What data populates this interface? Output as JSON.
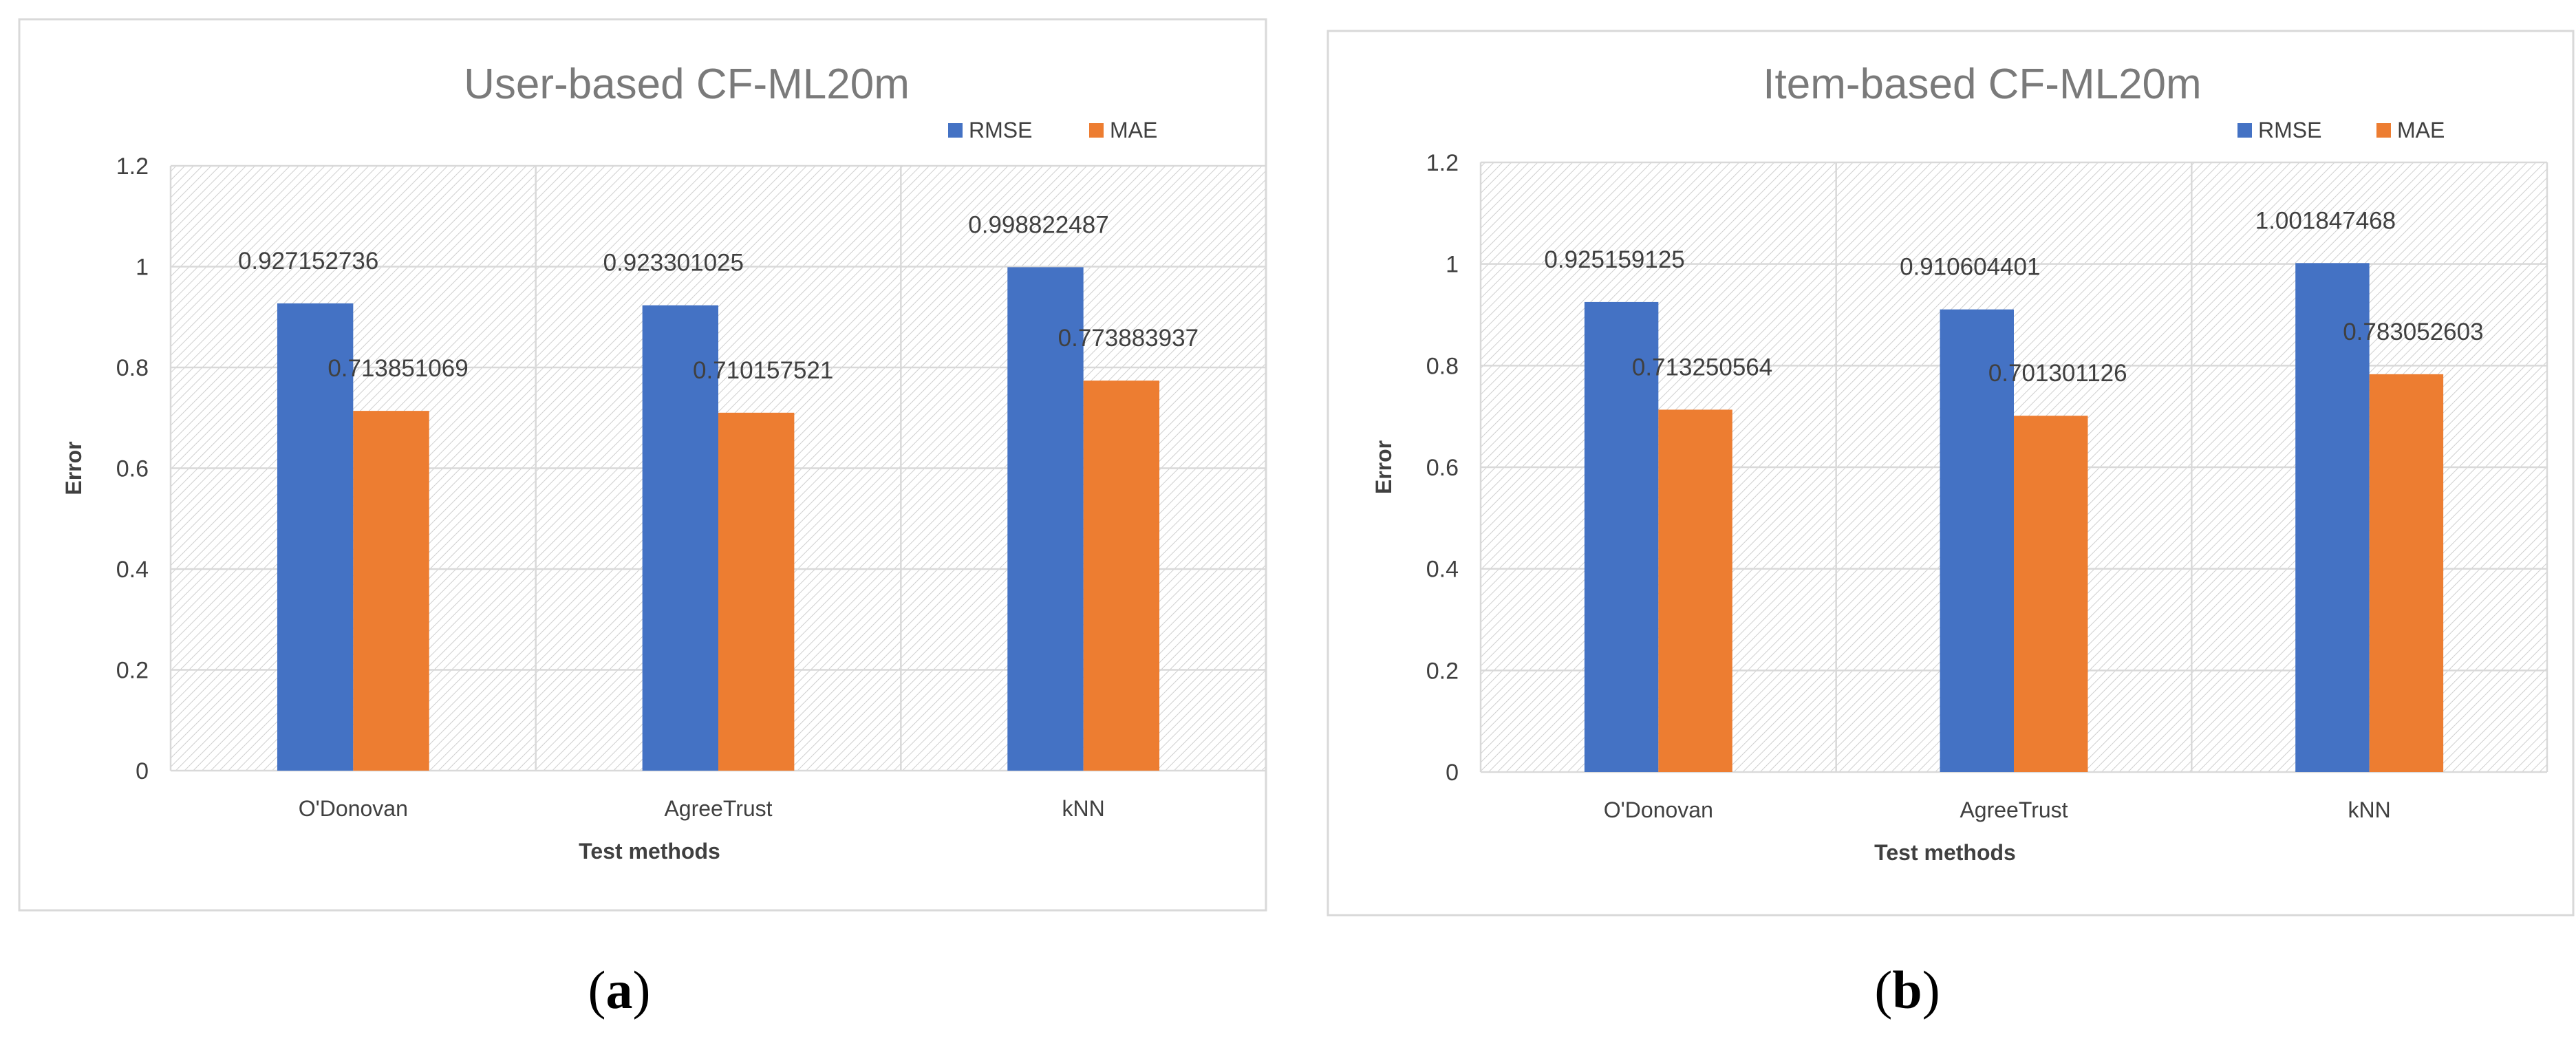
{
  "colors": {
    "rmse": "#4472c4",
    "mae": "#ed7d31",
    "grid": "#d9d9d9",
    "frame": "#d9d9d9",
    "hatch": "#cfcfcf"
  },
  "chart_data": [
    {
      "type": "bar",
      "title": "User-based CF-ML20m",
      "xlabel": "Test methods",
      "ylabel": "Error",
      "ylim": [
        0,
        1.2
      ],
      "yticks": [
        "0",
        "0.2",
        "0.4",
        "0.6",
        "0.8",
        "1",
        "1.2"
      ],
      "categories": [
        "O'Donovan",
        "AgreeTrust",
        "kNN"
      ],
      "series": [
        {
          "name": "RMSE",
          "values": [
            0.927152736,
            0.923301025,
            0.998822487
          ],
          "labels": [
            "0.927152736",
            "0.923301025",
            "0.998822487"
          ]
        },
        {
          "name": "MAE",
          "values": [
            0.713851069,
            0.710157521,
            0.773883937
          ],
          "labels": [
            "0.713851069",
            "0.710157521",
            "0.773883937"
          ]
        }
      ],
      "legend": "top-right",
      "grid": true,
      "caption": {
        "open": "(",
        "letter": "a",
        "close": ")"
      }
    },
    {
      "type": "bar",
      "title": "Item-based CF-ML20m",
      "xlabel": "Test methods",
      "ylabel": "Error",
      "ylim": [
        0,
        1.2
      ],
      "yticks": [
        "0",
        "0.2",
        "0.4",
        "0.6",
        "0.8",
        "1",
        "1.2"
      ],
      "categories": [
        "O'Donovan",
        "AgreeTrust",
        "kNN"
      ],
      "series": [
        {
          "name": "RMSE",
          "values": [
            0.925159125,
            0.910604401,
            1.001847468
          ],
          "labels": [
            "0.925159125",
            "0.910604401",
            "1.001847468"
          ]
        },
        {
          "name": "MAE",
          "values": [
            0.713250564,
            0.701301126,
            0.783052603
          ],
          "labels": [
            "0.713250564",
            "0.701301126",
            "0.783052603"
          ]
        }
      ],
      "legend": "top-right",
      "grid": true,
      "caption": {
        "open": "(",
        "letter": "b",
        "close": ")"
      }
    }
  ]
}
